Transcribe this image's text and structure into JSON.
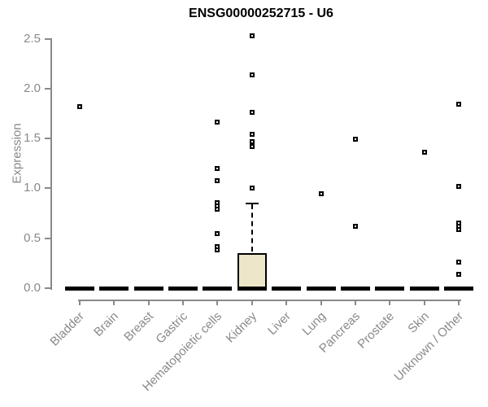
{
  "chart_data": {
    "type": "boxplot",
    "title": "ENSG00000252715 - U6",
    "ylabel": "Expression",
    "xlabel": "",
    "ylim": [
      0,
      2.5
    ],
    "yticks": [
      "0.0",
      "0.5",
      "1.0",
      "1.5",
      "2.0",
      "2.5"
    ],
    "grid": "off",
    "legend": "none",
    "categories": [
      "Bladder",
      "Brain",
      "Breast",
      "Gastric",
      "Hematopoietic cells",
      "Kidney",
      "Liver",
      "Lung",
      "Pancreas",
      "Prostate",
      "Skin",
      "Unknown / Other"
    ],
    "boxes": [
      {
        "category": "Bladder",
        "q1": 0,
        "median": 0,
        "q3": 0,
        "whisker_low": 0,
        "whisker_high": 0,
        "outliers": [
          1.82
        ]
      },
      {
        "category": "Brain",
        "q1": 0,
        "median": 0,
        "q3": 0,
        "whisker_low": 0,
        "whisker_high": 0,
        "outliers": []
      },
      {
        "category": "Breast",
        "q1": 0,
        "median": 0,
        "q3": 0,
        "whisker_low": 0,
        "whisker_high": 0,
        "outliers": []
      },
      {
        "category": "Gastric",
        "q1": 0,
        "median": 0,
        "q3": 0,
        "whisker_low": 0,
        "whisker_high": 0,
        "outliers": []
      },
      {
        "category": "Hematopoietic cells",
        "q1": 0,
        "median": 0,
        "q3": 0,
        "whisker_low": 0,
        "whisker_high": 0,
        "outliers": [
          1.66,
          1.2,
          1.08,
          0.86,
          0.82,
          0.79,
          0.55,
          0.42,
          0.38
        ]
      },
      {
        "category": "Kidney",
        "q1": 0,
        "median": 0,
        "q3": 0.35,
        "whisker_low": 0,
        "whisker_high": 0.85,
        "outliers": [
          2.53,
          2.14,
          1.76,
          1.54,
          1.47,
          1.42,
          1.0
        ]
      },
      {
        "category": "Liver",
        "q1": 0,
        "median": 0,
        "q3": 0,
        "whisker_low": 0,
        "whisker_high": 0,
        "outliers": []
      },
      {
        "category": "Lung",
        "q1": 0,
        "median": 0,
        "q3": 0,
        "whisker_low": 0,
        "whisker_high": 0,
        "outliers": [
          0.95
        ]
      },
      {
        "category": "Pancreas",
        "q1": 0,
        "median": 0,
        "q3": 0,
        "whisker_low": 0,
        "whisker_high": 0,
        "outliers": [
          1.49,
          0.62
        ]
      },
      {
        "category": "Prostate",
        "q1": 0,
        "median": 0,
        "q3": 0,
        "whisker_low": 0,
        "whisker_high": 0,
        "outliers": []
      },
      {
        "category": "Skin",
        "q1": 0,
        "median": 0,
        "q3": 0,
        "whisker_low": 0,
        "whisker_high": 0,
        "outliers": [
          1.36
        ]
      },
      {
        "category": "Unknown / Other",
        "q1": 0,
        "median": 0,
        "q3": 0,
        "whisker_low": 0,
        "whisker_high": 0,
        "outliers": [
          1.84,
          1.02,
          0.65,
          0.62,
          0.59,
          0.26,
          0.14
        ]
      }
    ],
    "colors": {
      "box_fill": "#EDE6C9",
      "box_border": "#000000",
      "marker": "#000000",
      "axis": "#898989",
      "tick_text": "#898989",
      "title_text": "#000000"
    }
  }
}
